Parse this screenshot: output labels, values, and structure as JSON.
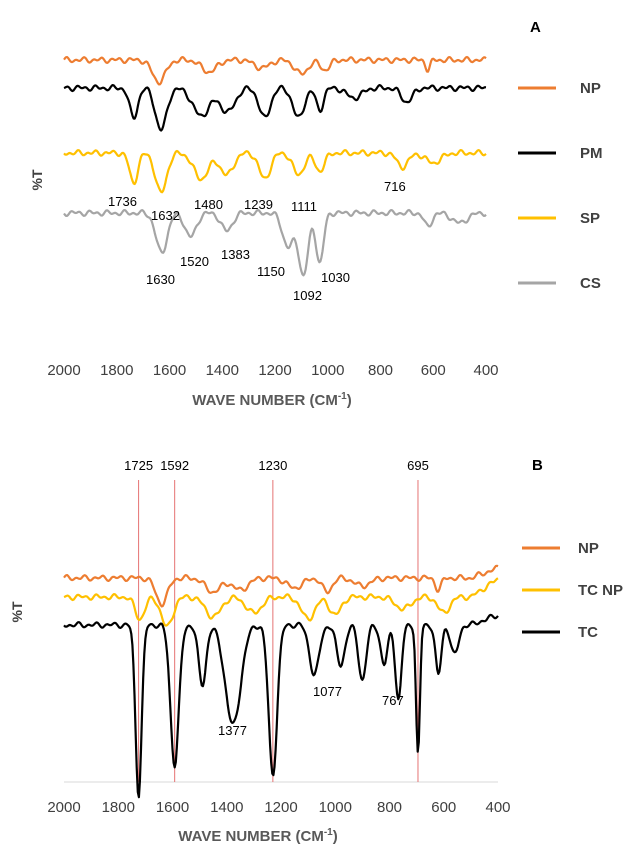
{
  "chart_data": [
    {
      "panel": "A",
      "type": "line",
      "ylabel": "%T",
      "xlabel": "WAVE NUMBER (CM",
      "xlabel_sup": "-1",
      "xlabel_close": ")",
      "x_reversed": true,
      "xlim": [
        2000,
        400
      ],
      "xticks": [
        "2000",
        "1800",
        "1600",
        "1400",
        "1200",
        "1000",
        "800",
        "600",
        "400"
      ],
      "legend_position": "right",
      "series": [
        {
          "name": "NP",
          "color": "#ED7D31"
        },
        {
          "name": "PM",
          "color": "#000000"
        },
        {
          "name": "SP",
          "color": "#FFC000"
        },
        {
          "name": "CS",
          "color": "#A5A5A5"
        }
      ],
      "annotations": [
        "1736",
        "1632",
        "1480",
        "1239",
        "1111",
        "716",
        "1630",
        "1520",
        "1383",
        "1150",
        "1092",
        "1030"
      ]
    },
    {
      "panel": "B",
      "type": "line",
      "ylabel": "%T",
      "xlabel": "WAVE NUMBER (CM",
      "xlabel_sup": "-1",
      "xlabel_close": ")",
      "x_reversed": true,
      "xlim": [
        2000,
        400
      ],
      "xticks": [
        "2000",
        "1800",
        "1600",
        "1400",
        "1200",
        "1000",
        "800",
        "600",
        "400"
      ],
      "legend_position": "right",
      "reference_lines": [
        1725,
        1592,
        1230,
        695
      ],
      "reference_labels": [
        "1725",
        "1592",
        "1230",
        "695"
      ],
      "series": [
        {
          "name": "NP",
          "color": "#ED7D31"
        },
        {
          "name": "TC NP",
          "color": "#FFC000"
        },
        {
          "name": "TC",
          "color": "#000000"
        }
      ],
      "annotations": [
        "1377",
        "1077",
        "767"
      ]
    }
  ]
}
